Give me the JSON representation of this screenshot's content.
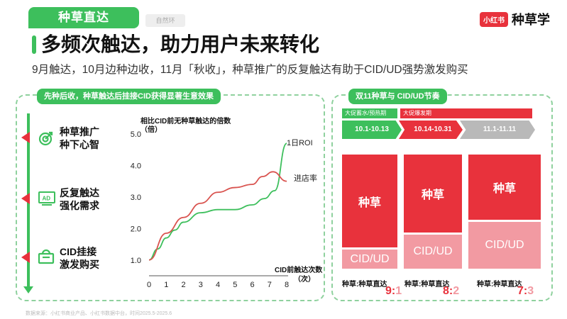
{
  "header": {
    "tag": "种草直达",
    "tag_sub": "自然环",
    "brand_logo": "小红书",
    "brand_name": "种草学"
  },
  "title": "多频次触达，助力用户未来转化",
  "subtitle": "9月触达，10月边种边收，11月「秋收」，种草推广的反复触达有助于CID/UD强势激发购买",
  "left_panel": {
    "heading": "先种后收，种草触达后挂接CID获得显著生意效果",
    "steps": [
      {
        "line1": "种草推广",
        "line2": "种下心智",
        "icon": "target-icon"
      },
      {
        "line1": "反复触达",
        "line2": "强化需求",
        "icon": "ad-icon"
      },
      {
        "line1": "CID挂接",
        "line2": "激发购买",
        "icon": "shopping-basket-icon"
      }
    ]
  },
  "chart_data": {
    "type": "line",
    "title": "相比CID前无种草触达的倍数",
    "ylabel": "（倍）",
    "xlabel": "CID前触达次数",
    "xunit": "（次）",
    "x": [
      0,
      1,
      2,
      3,
      4,
      5,
      6,
      7,
      8
    ],
    "x_ticks": [
      "0",
      "1",
      "2",
      "3",
      "4",
      "5",
      "6",
      "7",
      "8"
    ],
    "y_ticks": [
      "1.0",
      "2.0",
      "3.0",
      "4.0",
      "5.0"
    ],
    "ylim": [
      0.5,
      5.0
    ],
    "xlim": [
      0,
      8
    ],
    "series": [
      {
        "name": "1日ROI",
        "color": "#3dbf5c",
        "points": [
          [
            0,
            1.0
          ],
          [
            0.5,
            1.35
          ],
          [
            1,
            1.7
          ],
          [
            1.5,
            1.95
          ],
          [
            2,
            2.2
          ],
          [
            3,
            2.5
          ],
          [
            4,
            2.6
          ],
          [
            5,
            2.6
          ],
          [
            6,
            2.75
          ],
          [
            6.7,
            2.95
          ],
          [
            7.3,
            3.2
          ],
          [
            8,
            4.7
          ]
        ]
      },
      {
        "name": "进店率",
        "color": "#d9534f",
        "points": [
          [
            0,
            1.0
          ],
          [
            1,
            1.85
          ],
          [
            2,
            2.35
          ],
          [
            3,
            2.8
          ],
          [
            4,
            3.15
          ],
          [
            5,
            3.3
          ],
          [
            6,
            3.4
          ],
          [
            6.6,
            3.65
          ],
          [
            7.2,
            3.8
          ],
          [
            8,
            3.5
          ]
        ]
      }
    ]
  },
  "right_panel": {
    "heading": "双11种草与 CID/UD节奏",
    "phase_labels": [
      "大促蓄水/预热期",
      "大促爆发期"
    ],
    "periods": [
      "10.1-10.13",
      "10.14-10.31",
      "11.1-11.11"
    ],
    "stacks": [
      {
        "top": "种草",
        "bottom": "CID/UD",
        "caption": "种草:种草直达",
        "ratio_a": "9",
        "ratio_b": "1",
        "share": 0.9
      },
      {
        "top": "种草",
        "bottom": "CID/UD",
        "caption": "种草:种草直达",
        "ratio_a": "8",
        "ratio_b": "2",
        "share": 0.8
      },
      {
        "top": "种草",
        "bottom": "CID/UD",
        "caption": "种草:种草直达",
        "ratio_a": "7",
        "ratio_b": "3",
        "share": 0.7
      }
    ]
  },
  "colors": {
    "green": "#3dbf5c",
    "red": "#e8323c",
    "pink": "#f29aa2",
    "gray": "#b9b9b9"
  },
  "footer": "数据来源：小红书商业产品、小红书数据中台，时间2025.5-2025.6"
}
